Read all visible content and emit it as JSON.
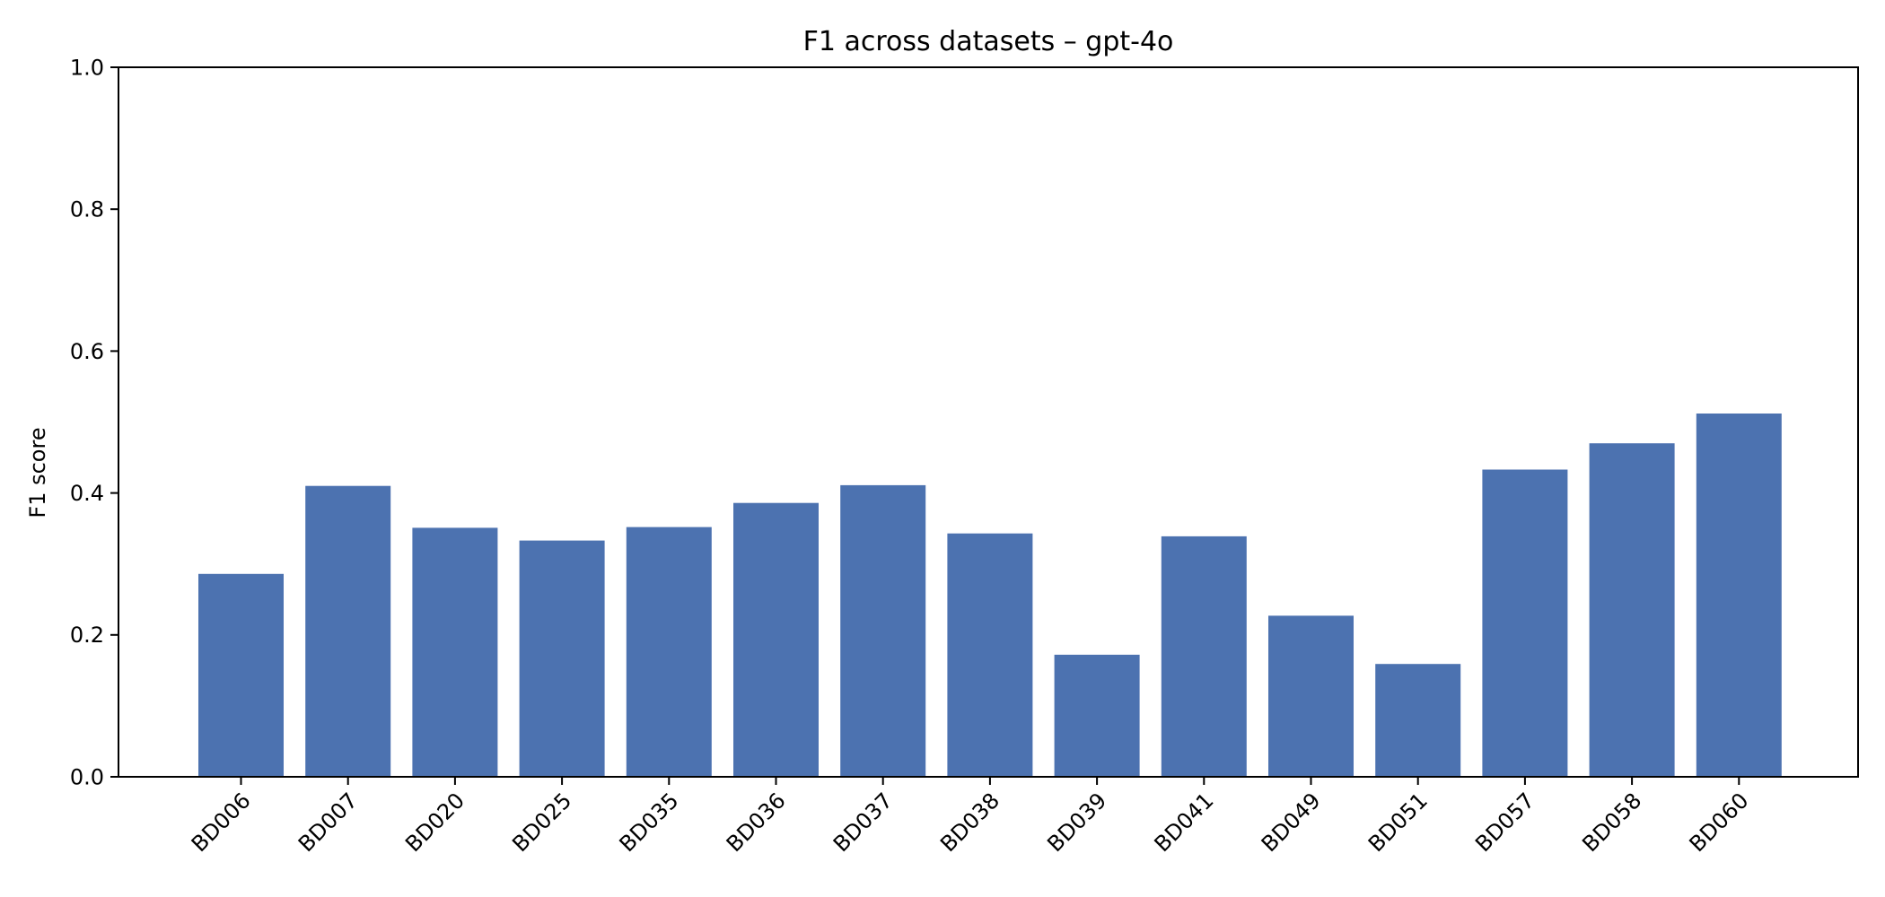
{
  "chart_data": {
    "type": "bar",
    "title": "F1 across datasets – gpt-4o",
    "xlabel": "",
    "ylabel": "F1 score",
    "ylim": [
      0,
      1.0
    ],
    "yticks": [
      "0.0",
      "0.2",
      "0.4",
      "0.6",
      "0.8",
      "1.0"
    ],
    "grid": false,
    "legend": "none",
    "bar_color": "#4c72b0",
    "categories": [
      "BD006",
      "BD007",
      "BD020",
      "BD025",
      "BD035",
      "BD036",
      "BD037",
      "BD038",
      "BD039",
      "BD041",
      "BD049",
      "BD051",
      "BD057",
      "BD058",
      "BD060"
    ],
    "values": [
      0.286,
      0.41,
      0.351,
      0.333,
      0.352,
      0.386,
      0.411,
      0.343,
      0.172,
      0.339,
      0.227,
      0.159,
      0.433,
      0.47,
      0.512
    ]
  }
}
